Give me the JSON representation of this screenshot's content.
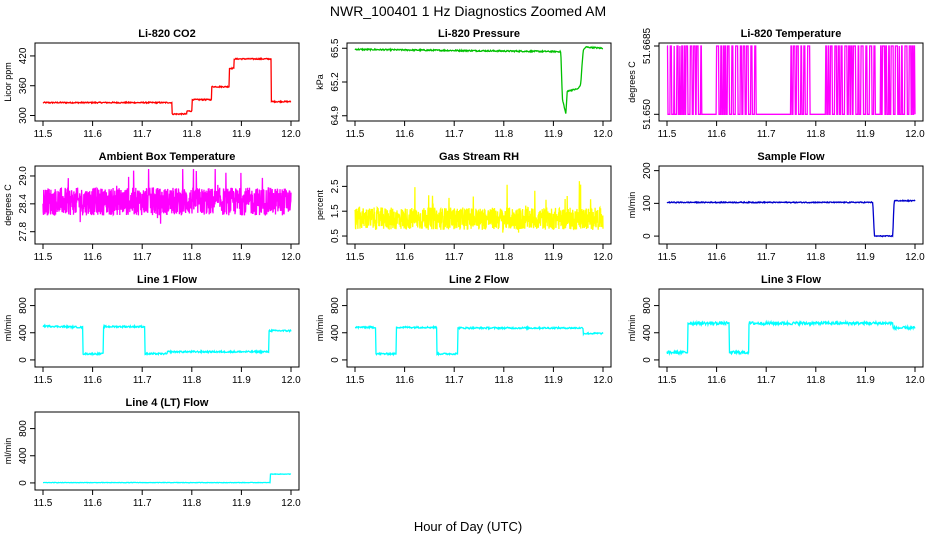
{
  "figure": {
    "title": "NWR_100401  1 Hz Diagnostics Zoomed AM",
    "xlabel": "Hour of Day (UTC)"
  },
  "chart_data": [
    {
      "type": "line",
      "title": "Li-820 CO2",
      "ylabel": "Licor ppm",
      "color": "#ff0000",
      "xlim": [
        11.5,
        12.0
      ],
      "ylim": [
        295,
        440
      ],
      "xticks": [
        "11.5",
        "11.6",
        "11.7",
        "11.8",
        "11.9",
        "12.0"
      ],
      "yticks": [
        {
          "v": 300,
          "label": "300"
        },
        {
          "v": 360,
          "label": "360"
        },
        {
          "v": 420,
          "label": "420"
        }
      ],
      "x": [
        11.5,
        11.76,
        11.76,
        11.79,
        11.79,
        11.8,
        11.8,
        11.84,
        11.84,
        11.875,
        11.875,
        11.885,
        11.885,
        11.96,
        11.96,
        12.0
      ],
      "y": [
        326,
        326,
        303,
        303,
        309,
        309,
        332,
        332,
        358,
        358,
        395,
        395,
        414,
        414,
        328,
        328
      ],
      "noise": 1.2
    },
    {
      "type": "line",
      "title": "Li-820 Pressure",
      "ylabel": "kPa",
      "color": "#00c000",
      "xlim": [
        11.5,
        12.0
      ],
      "ylim": [
        64.88,
        65.52
      ],
      "xticks": [
        "11.5",
        "11.6",
        "11.7",
        "11.8",
        "11.9",
        "12.0"
      ],
      "yticks": [
        {
          "v": 64.9,
          "label": "64.9"
        },
        {
          "v": 65.2,
          "label": "65.2"
        },
        {
          "v": 65.5,
          "label": "65.5"
        }
      ],
      "x": [
        11.5,
        11.7,
        11.915,
        11.918,
        11.925,
        11.928,
        11.95,
        11.955,
        11.96,
        11.965,
        12.0
      ],
      "y": [
        65.49,
        65.48,
        65.47,
        65.05,
        64.92,
        65.12,
        65.14,
        65.18,
        65.48,
        65.51,
        65.5
      ],
      "noise": 0.006
    },
    {
      "type": "line",
      "title": "Li-820 Temperature",
      "ylabel": "degrees C",
      "color": "#ff00ff",
      "xlim": [
        11.5,
        12.0
      ],
      "ylim": [
        51.649,
        51.6685
      ],
      "xticks": [
        "11.5",
        "11.6",
        "11.7",
        "11.8",
        "11.9",
        "12.0"
      ],
      "yticks": [
        {
          "v": 51.65,
          "label": "51.650"
        },
        {
          "v": 51.6685,
          "label": "51.6685"
        }
      ],
      "levels": [
        51.65,
        51.6685
      ],
      "toggle_ranges": [
        [
          11.5,
          11.57
        ],
        [
          11.6,
          11.68
        ],
        [
          11.75,
          11.79
        ],
        [
          11.82,
          11.92
        ],
        [
          11.93,
          12.0
        ]
      ],
      "x": [],
      "y": []
    },
    {
      "type": "line",
      "title": "Ambient Box Temperature",
      "ylabel": "degrees C",
      "color": "#ff00ff",
      "xlim": [
        11.5,
        12.0
      ],
      "ylim": [
        27.6,
        29.15
      ],
      "xticks": [
        "11.5",
        "11.6",
        "11.7",
        "11.8",
        "11.9",
        "12.0"
      ],
      "yticks": [
        {
          "v": 27.8,
          "label": "27.8"
        },
        {
          "v": 28.4,
          "label": "28.4"
        },
        {
          "v": 29.0,
          "label": "29.0"
        }
      ],
      "mean": 28.45,
      "spread": 0.3,
      "x": [],
      "y": []
    },
    {
      "type": "line",
      "title": "Gas Stream RH",
      "ylabel": "percent",
      "color": "#ffff00",
      "xlim": [
        11.5,
        12.0
      ],
      "ylim": [
        0.3,
        3.2
      ],
      "xticks": [
        "11.5",
        "11.6",
        "11.7",
        "11.8",
        "11.9",
        "12.0"
      ],
      "yticks": [
        {
          "v": 0.5,
          "label": "0.5"
        },
        {
          "v": 1.5,
          "label": "1.5"
        },
        {
          "v": 2.5,
          "label": "2.5"
        }
      ],
      "mean": 1.2,
      "spread": 0.45,
      "x": [],
      "y": []
    },
    {
      "type": "line",
      "title": "Sample Flow",
      "ylabel": "ml/min",
      "color": "#0000cc",
      "xlim": [
        11.5,
        12.0
      ],
      "ylim": [
        -15,
        205
      ],
      "xticks": [
        "11.5",
        "11.6",
        "11.7",
        "11.8",
        "11.9",
        "12.0"
      ],
      "yticks": [
        {
          "v": 0,
          "label": "0"
        },
        {
          "v": 100,
          "label": "100"
        },
        {
          "v": 200,
          "label": "200"
        }
      ],
      "x": [
        11.5,
        11.915,
        11.918,
        11.955,
        11.958,
        12.0
      ],
      "y": [
        103,
        103,
        0,
        0,
        108,
        108
      ],
      "noise": 1.5
    },
    {
      "type": "line",
      "title": "Line 1 Flow",
      "ylabel": "ml/min",
      "color": "#00ffff",
      "xlim": [
        11.5,
        12.0
      ],
      "ylim": [
        -60,
        1000
      ],
      "xticks": [
        "11.5",
        "11.6",
        "11.7",
        "11.8",
        "11.9",
        "12.0"
      ],
      "yticks": [
        {
          "v": 0,
          "label": "0"
        },
        {
          "v": 400,
          "label": "400"
        },
        {
          "v": 800,
          "label": "800"
        }
      ],
      "x": [
        11.5,
        11.58,
        11.58,
        11.622,
        11.622,
        11.705,
        11.705,
        11.75,
        11.75,
        11.955,
        11.955,
        12.0
      ],
      "y": [
        500,
        480,
        90,
        90,
        490,
        490,
        90,
        90,
        120,
        120,
        430,
        430
      ],
      "noise": 12
    },
    {
      "type": "line",
      "title": "Line 2 Flow",
      "ylabel": "ml/min",
      "color": "#00ffff",
      "xlim": [
        11.5,
        12.0
      ],
      "ylim": [
        -60,
        1000
      ],
      "xticks": [
        "11.5",
        "11.6",
        "11.7",
        "11.8",
        "11.9",
        "12.0"
      ],
      "yticks": [
        {
          "v": 0,
          "label": "0"
        },
        {
          "v": 400,
          "label": "400"
        },
        {
          "v": 800,
          "label": "800"
        }
      ],
      "x": [
        11.5,
        11.542,
        11.542,
        11.583,
        11.583,
        11.665,
        11.665,
        11.707,
        11.707,
        11.96,
        11.96,
        12.0
      ],
      "y": [
        480,
        480,
        90,
        90,
        480,
        480,
        90,
        90,
        470,
        470,
        390,
        390
      ],
      "noise": 12
    },
    {
      "type": "line",
      "title": "Line 3 Flow",
      "ylabel": "ml/min",
      "color": "#00ffff",
      "xlim": [
        11.5,
        12.0
      ],
      "ylim": [
        -60,
        1000
      ],
      "xticks": [
        "11.5",
        "11.6",
        "11.7",
        "11.8",
        "11.9",
        "12.0"
      ],
      "yticks": [
        {
          "v": 0,
          "label": "0"
        },
        {
          "v": 400,
          "label": "400"
        },
        {
          "v": 800,
          "label": "800"
        }
      ],
      "x": [
        11.5,
        11.542,
        11.542,
        11.625,
        11.625,
        11.665,
        11.665,
        11.955,
        11.955,
        12.0
      ],
      "y": [
        110,
        110,
        540,
        540,
        110,
        110,
        540,
        540,
        470,
        470
      ],
      "noise": 22
    },
    {
      "type": "line",
      "title": "Line 4 (LT) Flow",
      "ylabel": "ml/min",
      "color": "#00ffff",
      "xlim": [
        11.5,
        12.0
      ],
      "ylim": [
        -60,
        1000
      ],
      "xticks": [
        "11.5",
        "11.6",
        "11.7",
        "11.8",
        "11.9",
        "12.0"
      ],
      "yticks": [
        {
          "v": 0,
          "label": "0"
        },
        {
          "v": 400,
          "label": "400"
        },
        {
          "v": 800,
          "label": "800"
        }
      ],
      "x": [
        11.5,
        11.958,
        11.958,
        12.0
      ],
      "y": [
        5,
        5,
        130,
        130
      ],
      "noise": 3
    }
  ]
}
